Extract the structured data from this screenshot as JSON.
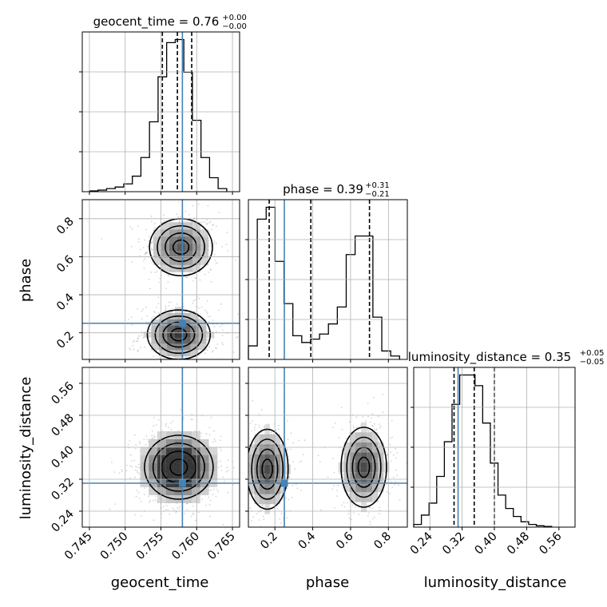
{
  "chart_data": {
    "type": "corner",
    "parameters": [
      "geocent_time",
      "phase",
      "luminosity_distance"
    ],
    "injection": {
      "geocent_time": 0.758,
      "phase": 0.25,
      "luminosity_distance": 0.31
    },
    "colors": {
      "injection": "#4682b4",
      "hist": "#000000",
      "grid": "#b0b0b0",
      "scatter": "#555555"
    },
    "titles": [
      {
        "param": "geocent_time",
        "label": "geocent_time = 0.76",
        "plus": "+0.00",
        "minus": "−0.00"
      },
      {
        "param": "phase",
        "label": "phase = 0.39",
        "plus": "+0.31",
        "minus": "−0.21"
      },
      {
        "param": "luminosity_distance",
        "label": "luminosity_distance = 0.35",
        "plus": "+0.05",
        "minus": "−0.05"
      }
    ],
    "axes": {
      "geocent_time": {
        "range": [
          0.744,
          0.766
        ],
        "ticks": [
          0.745,
          0.75,
          0.755,
          0.76,
          0.765
        ],
        "ticklabels": [
          "0.745",
          "0.750",
          "0.755",
          "0.760",
          "0.765"
        ]
      },
      "phase": {
        "range": [
          0.06,
          0.9
        ],
        "ticks": [
          0.2,
          0.4,
          0.6,
          0.8
        ],
        "ticklabels": [
          "0.2",
          "0.4",
          "0.6",
          "0.8"
        ]
      },
      "luminosity_distance": {
        "range": [
          0.2,
          0.6
        ],
        "ticks": [
          0.24,
          0.32,
          0.4,
          0.48,
          0.56
        ],
        "ticklabels": [
          "0.24",
          "0.32",
          "0.40",
          "0.48",
          "0.56"
        ]
      }
    },
    "histograms": {
      "geocent_time": {
        "edges": [
          0.745,
          0.7462,
          0.7474,
          0.7486,
          0.7498,
          0.751,
          0.7522,
          0.7534,
          0.7546,
          0.7558,
          0.757,
          0.7582,
          0.7594,
          0.7606,
          0.7618,
          0.763,
          0.7642
        ],
        "counts": [
          0.5,
          1,
          2,
          3,
          5,
          10,
          22,
          45,
          74,
          96,
          98,
          77,
          46,
          22,
          9,
          2
        ],
        "quantiles": [
          0.7552,
          0.7573,
          0.7593
        ]
      },
      "phase": {
        "edges": [
          0.06,
          0.107,
          0.154,
          0.201,
          0.248,
          0.295,
          0.342,
          0.389,
          0.436,
          0.483,
          0.53,
          0.577,
          0.624,
          0.671,
          0.718,
          0.765,
          0.812,
          0.859
        ],
        "counts": [
          8,
          83,
          90,
          58,
          33,
          14,
          10,
          12,
          15,
          21,
          31,
          62,
          73,
          73,
          25,
          5,
          2
        ],
        "quantiles": [
          0.17,
          0.39,
          0.7
        ]
      },
      "luminosity_distance": {
        "edges": [
          0.2,
          0.219,
          0.238,
          0.257,
          0.276,
          0.295,
          0.314,
          0.333,
          0.352,
          0.371,
          0.39,
          0.409,
          0.428,
          0.447,
          0.466,
          0.485,
          0.504,
          0.523,
          0.542
        ],
        "counts": [
          2,
          9,
          18,
          38,
          64,
          92,
          114,
          114,
          106,
          78,
          48,
          24,
          14,
          8,
          4,
          2,
          1,
          0.5
        ],
        "quantiles": [
          0.3,
          0.35,
          0.4
        ]
      }
    },
    "pairs": [
      {
        "x": "geocent_time",
        "y": "phase",
        "modes": [
          {
            "cx": 0.7578,
            "cy": 0.65,
            "sx": 0.0022,
            "sy": 0.075,
            "weight": 0.45
          },
          {
            "cx": 0.7575,
            "cy": 0.19,
            "sx": 0.0022,
            "sy": 0.065,
            "weight": 0.55
          }
        ]
      },
      {
        "x": "geocent_time",
        "y": "luminosity_distance",
        "modes": [
          {
            "cx": 0.7575,
            "cy": 0.35,
            "sx": 0.0024,
            "sy": 0.04,
            "weight": 1.0
          }
        ]
      },
      {
        "x": "phase",
        "y": "luminosity_distance",
        "modes": [
          {
            "cx": 0.16,
            "cy": 0.345,
            "sx": 0.055,
            "sy": 0.05,
            "weight": 0.5
          },
          {
            "cx": 0.67,
            "cy": 0.35,
            "sx": 0.06,
            "sy": 0.05,
            "weight": 0.5
          }
        ]
      }
    ],
    "xlabels": [
      "geocent_time",
      "phase",
      "luminosity_distance"
    ],
    "ylabels": [
      "phase",
      "luminosity_distance"
    ],
    "grid": true
  }
}
